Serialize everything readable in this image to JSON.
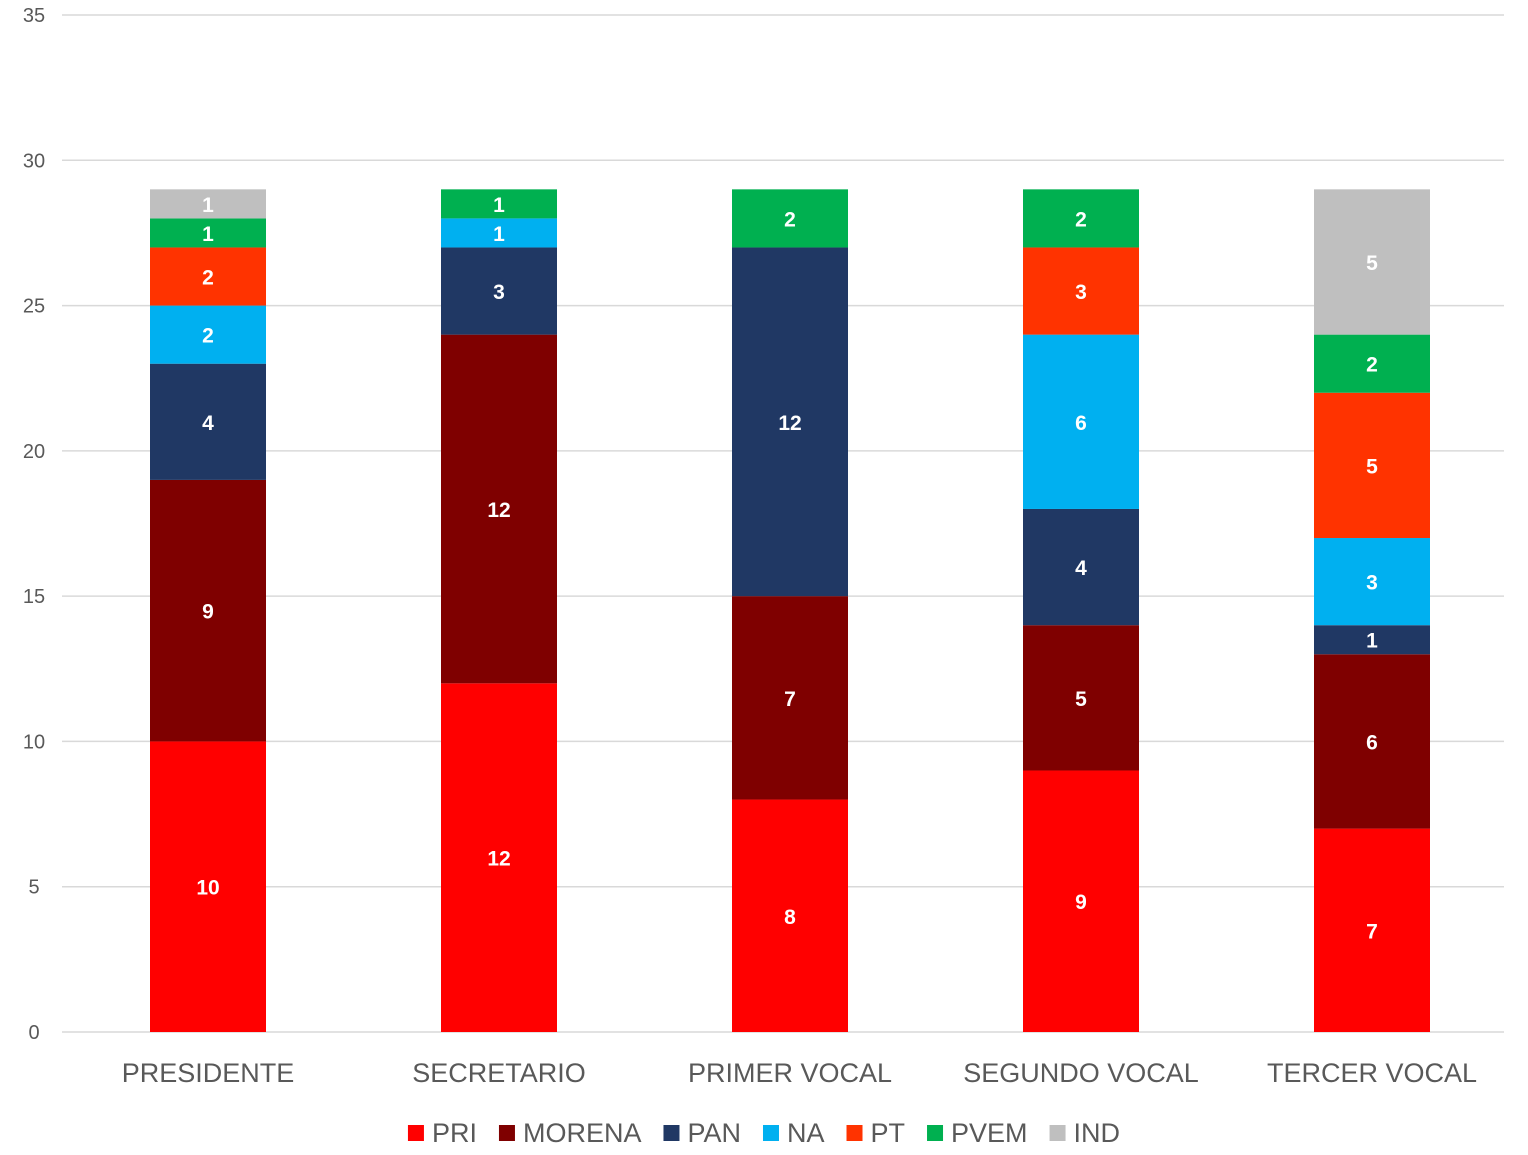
{
  "chart_data": {
    "type": "bar",
    "stacked": true,
    "categories": [
      "PRESIDENTE",
      "SECRETARIO",
      "PRIMER VOCAL",
      "SEGUNDO VOCAL",
      "TERCER VOCAL"
    ],
    "series": [
      {
        "name": "PRI",
        "color": "#FF0000",
        "values": [
          10,
          12,
          8,
          9,
          7
        ]
      },
      {
        "name": "MORENA",
        "color": "#7F0000",
        "values": [
          9,
          12,
          7,
          5,
          6
        ]
      },
      {
        "name": "PAN",
        "color": "#203864",
        "values": [
          4,
          3,
          12,
          4,
          1
        ]
      },
      {
        "name": "NA",
        "color": "#00B0F0",
        "values": [
          2,
          1,
          0,
          6,
          3
        ]
      },
      {
        "name": "PT",
        "color": "#FF3300",
        "values": [
          2,
          0,
          0,
          3,
          5
        ]
      },
      {
        "name": "PVEM",
        "color": "#00B050",
        "values": [
          1,
          1,
          2,
          2,
          2
        ]
      },
      {
        "name": "IND",
        "color": "#BFBFBF",
        "values": [
          1,
          0,
          0,
          0,
          5
        ]
      }
    ],
    "ylim": [
      0,
      35
    ],
    "yticks": [
      0,
      5,
      10,
      15,
      20,
      25,
      30,
      35
    ],
    "grid": true,
    "legend": "bottom",
    "data_labels": true
  }
}
